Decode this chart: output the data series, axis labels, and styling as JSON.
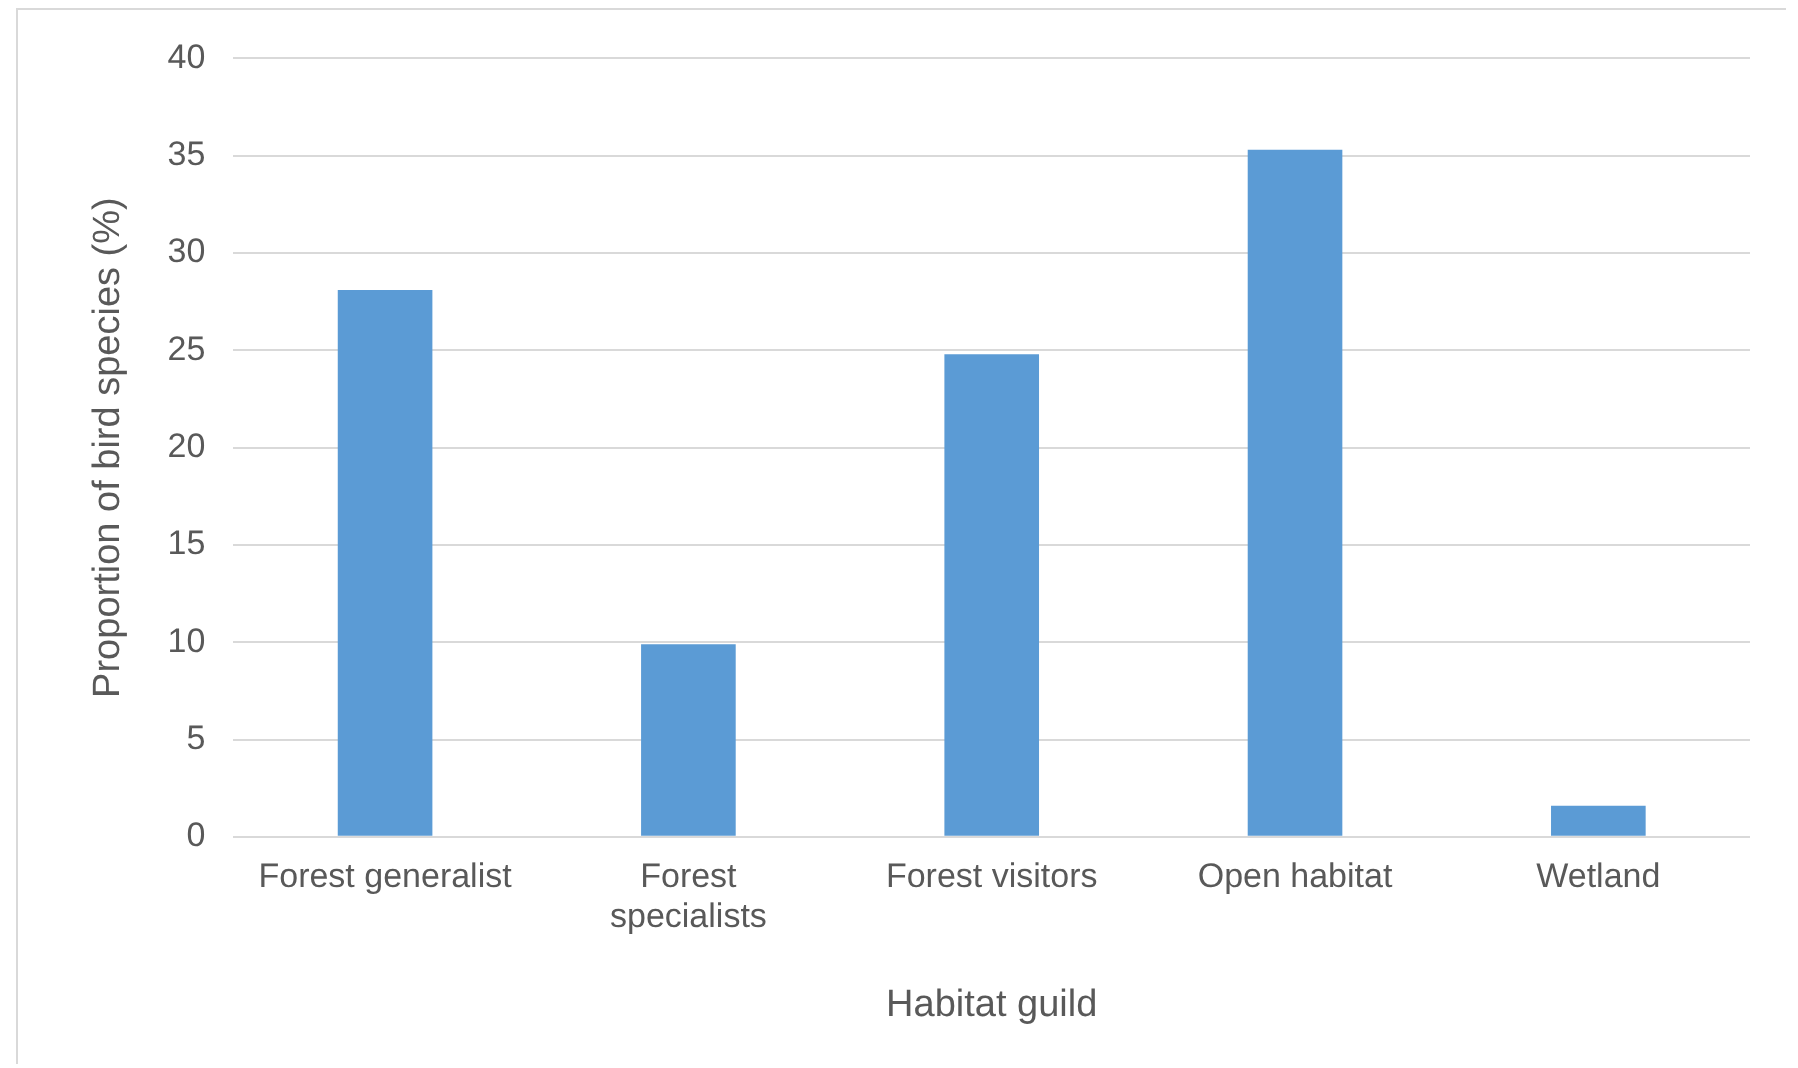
{
  "chart_data": {
    "type": "bar",
    "xlabel": "Habitat guild",
    "ylabel": "Proportion of bird species (%)",
    "categories": [
      "Forest generalist",
      "Forest specialists",
      "Forest visitors",
      "Open habitat",
      "Wetland"
    ],
    "values": [
      28.1,
      9.9,
      24.8,
      35.3,
      1.6
    ],
    "color": "#5b9bd5",
    "ylim": [
      0,
      40
    ],
    "yticks": [
      0,
      5,
      10,
      15,
      20,
      25,
      30,
      35,
      40
    ],
    "grid": "y"
  }
}
